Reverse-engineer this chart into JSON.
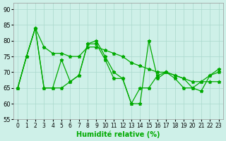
{
  "xlabel": "Humidité relative (%)",
  "xlim": [
    -0.5,
    23.5
  ],
  "ylim": [
    55,
    92
  ],
  "yticks": [
    55,
    60,
    65,
    70,
    75,
    80,
    85,
    90
  ],
  "xtick_labels": [
    "0",
    "1",
    "2",
    "3",
    "4",
    "5",
    "6",
    "7",
    "8",
    "9",
    "10",
    "11",
    "12",
    "13",
    "14",
    "15",
    "16",
    "17",
    "18",
    "19",
    "20",
    "21",
    "22",
    "23"
  ],
  "background_color": "#cef0e8",
  "grid_color": "#aad8cc",
  "line_color": "#00aa00",
  "series1": [
    65,
    75,
    84,
    65,
    65,
    74,
    67,
    69,
    79,
    80,
    75,
    70,
    68,
    60,
    60,
    80,
    68,
    70,
    69,
    68,
    65,
    64,
    69,
    70
  ],
  "series2": [
    65,
    75,
    84,
    65,
    65,
    65,
    67,
    69,
    79,
    79,
    74,
    68,
    68,
    60,
    65,
    65,
    69,
    70,
    68,
    65,
    65,
    67,
    69,
    71
  ],
  "series3": [
    65,
    75,
    84,
    78,
    76,
    76,
    75,
    75,
    78,
    78,
    77,
    76,
    75,
    73,
    72,
    71,
    70,
    70,
    69,
    68,
    67,
    67,
    67,
    67
  ]
}
